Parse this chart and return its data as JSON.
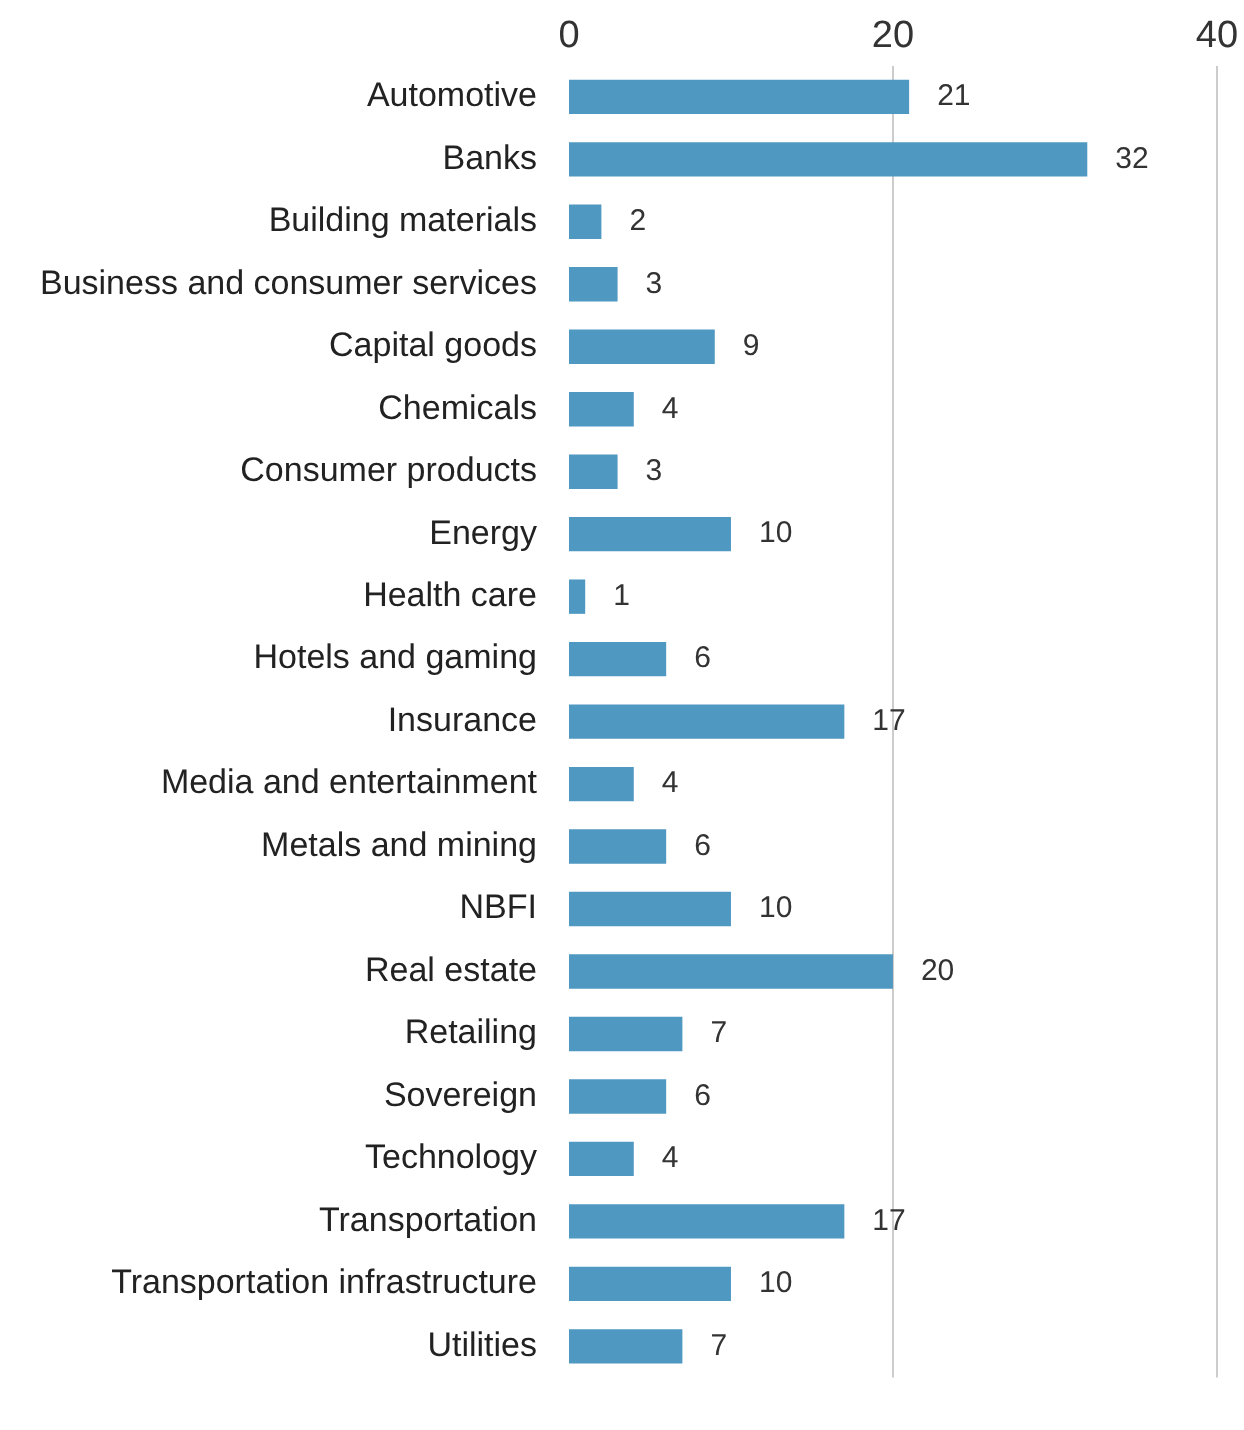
{
  "chart_data": {
    "type": "bar",
    "orientation": "horizontal",
    "categories": [
      "Automotive",
      "Banks",
      "Building materials",
      "Business and consumer services",
      "Capital goods",
      "Chemicals",
      "Consumer products",
      "Energy",
      "Health care",
      "Hotels and gaming",
      "Insurance",
      "Media and entertainment",
      "Metals and mining",
      "NBFI",
      "Real estate",
      "Retailing",
      "Sovereign",
      "Technology",
      "Transportation",
      "Transportation infrastructure",
      "Utilities"
    ],
    "values": [
      21,
      32,
      2,
      3,
      9,
      4,
      3,
      10,
      1,
      6,
      17,
      4,
      6,
      10,
      20,
      7,
      6,
      4,
      17,
      10,
      7
    ],
    "color": "#4f98c2",
    "xlim": [
      0,
      40
    ],
    "xticks": [
      0,
      20,
      40
    ],
    "grid": "x",
    "data_labels": true,
    "legend": false
  }
}
